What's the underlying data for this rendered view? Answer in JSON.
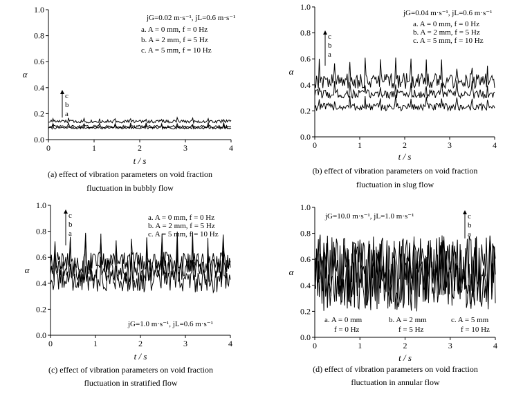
{
  "chart_data": [
    {
      "id": "a",
      "type": "line",
      "title": "",
      "xlabel": "t / s",
      "ylabel": "α",
      "xlim": [
        0,
        4
      ],
      "ylim": [
        0.0,
        1.0
      ],
      "xticks": [
        "0",
        "1",
        "2",
        "3",
        "4"
      ],
      "yticks": [
        "0.0",
        "0.2",
        "0.4",
        "0.6",
        "0.8",
        "1.0"
      ],
      "conditions": "jG=0.02 m·s⁻¹, jL=0.6 m·s⁻¹",
      "legend": [
        "a. A = 0 mm, f = 0 Hz",
        "b. A = 2 mm, f = 5 Hz",
        "c. A = 5 mm, f = 10 Hz"
      ],
      "order_labels": [
        "c",
        "b",
        "a"
      ],
      "caption": [
        "(a) effect of vibration parameters on void fraction",
        "fluctuation in bubbly flow"
      ],
      "series": [
        {
          "name": "a",
          "mean": 0.09,
          "amp": 0.008
        },
        {
          "name": "b",
          "mean": 0.1,
          "amp": 0.01
        },
        {
          "name": "c",
          "mean": 0.14,
          "amp": 0.012
        }
      ]
    },
    {
      "id": "b",
      "type": "line",
      "title": "",
      "xlabel": "t / s",
      "ylabel": "α",
      "xlim": [
        0,
        4
      ],
      "ylim": [
        0.0,
        1.0
      ],
      "xticks": [
        "0",
        "1",
        "2",
        "3",
        "4"
      ],
      "yticks": [
        "0.0",
        "0.2",
        "0.4",
        "0.6",
        "0.8",
        "1.0"
      ],
      "conditions": "jG=0.04 m·s⁻¹, jL=0.6 m·s⁻¹",
      "legend": [
        "a. A = 0 mm, f = 0 Hz",
        "b. A = 2 mm, f = 5 Hz",
        "c. A = 5 mm, f = 10 Hz"
      ],
      "order_labels": [
        "c",
        "b",
        "a"
      ],
      "caption": [
        "(b) effect of vibration parameters on void fraction",
        "fluctuation in slug flow"
      ],
      "series": [
        {
          "name": "a",
          "mean": 0.23,
          "amp": 0.03
        },
        {
          "name": "b",
          "mean": 0.33,
          "amp": 0.035
        },
        {
          "name": "c",
          "mean": 0.43,
          "amp": 0.06
        }
      ]
    },
    {
      "id": "c",
      "type": "line",
      "title": "",
      "xlabel": "t / s",
      "ylabel": "α",
      "xlim": [
        0,
        4
      ],
      "ylim": [
        0.0,
        1.0
      ],
      "xticks": [
        "0",
        "1",
        "2",
        "3",
        "4"
      ],
      "yticks": [
        "0.0",
        "0.2",
        "0.4",
        "0.6",
        "0.8",
        "1.0"
      ],
      "conditions": "jG=1.0 m·s⁻¹, jL=0.6 m·s⁻¹",
      "legend": [
        "a. A = 0 mm, f = 0 Hz",
        "b. A = 2 mm, f = 5 Hz",
        "c. A = 5 mm, f = 10 Hz"
      ],
      "order_labels": [
        "c",
        "b",
        "a"
      ],
      "caption": [
        "(c) effect of vibration parameters on void fraction",
        "fluctuation in stratified flow"
      ],
      "series": [
        {
          "name": "a",
          "mean": 0.42,
          "amp": 0.09
        },
        {
          "name": "b",
          "mean": 0.5,
          "amp": 0.09
        },
        {
          "name": "c",
          "mean": 0.56,
          "amp": 0.08
        }
      ]
    },
    {
      "id": "d",
      "type": "line",
      "title": "",
      "xlabel": "t / s",
      "ylabel": "α",
      "xlim": [
        0,
        4
      ],
      "ylim": [
        0.0,
        1.0
      ],
      "xticks": [
        "0",
        "1",
        "2",
        "3",
        "4"
      ],
      "yticks": [
        "0.0",
        "0.2",
        "0.4",
        "0.6",
        "0.8",
        "1.0"
      ],
      "conditions": "jG=10.0 m·s⁻¹, jL=1.0 m·s⁻¹",
      "legend": [
        {
          "l1": "a. A = 0 mm",
          "l2": "f = 0 Hz"
        },
        {
          "l1": "b. A = 2 mm",
          "l2": "f = 5 Hz"
        },
        {
          "l1": "c. A = 5 mm",
          "l2": "f = 10 Hz"
        }
      ],
      "order_labels": [
        "c",
        "b",
        "a"
      ],
      "caption": [
        "(d) effect of vibration parameters on void fraction",
        "fluctuation in annular flow"
      ],
      "series": [
        {
          "name": "a",
          "mean": 0.48,
          "amp": 0.28
        },
        {
          "name": "b",
          "mean": 0.5,
          "amp": 0.28
        },
        {
          "name": "c",
          "mean": 0.52,
          "amp": 0.27
        }
      ]
    }
  ]
}
